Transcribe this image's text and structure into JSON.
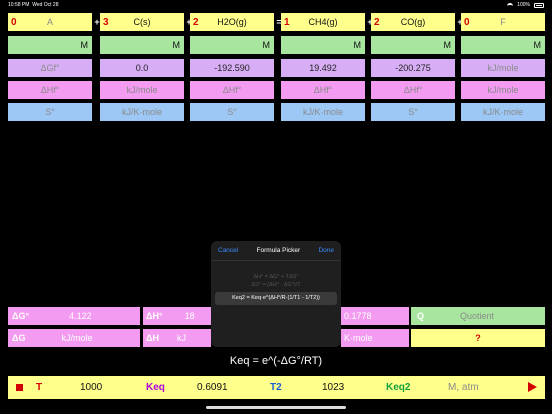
{
  "status": {
    "time": "10:58 PM",
    "date": "Wed Oct 28",
    "battery": "100%"
  },
  "species": [
    {
      "coef": "0",
      "name": "A",
      "name_gray": true,
      "op": "+"
    },
    {
      "coef": "3",
      "name": "C(s)",
      "name_gray": false,
      "op": "+"
    },
    {
      "coef": "2",
      "name": "H2O(g)",
      "name_gray": false,
      "op": "="
    },
    {
      "coef": "1",
      "name": "CH4(g)",
      "name_gray": false,
      "op": "+"
    },
    {
      "coef": "2",
      "name": "CO(g)",
      "name_gray": false,
      "op": "+"
    },
    {
      "coef": "0",
      "name": "F",
      "name_gray": true,
      "op": ""
    }
  ],
  "molarity_label": "M",
  "dGf": [
    "ΔGf°",
    "0.0",
    "-192.590",
    "19.492",
    "-200.275",
    "kJ/mole"
  ],
  "dHf": [
    "ΔHf°",
    "kJ/mole",
    "ΔHf°",
    "ΔHf°",
    "ΔHf°",
    "kJ/mole"
  ],
  "S": [
    "S°",
    "kJ/K·mole",
    "S°",
    "kJ/K·mole",
    "S°",
    "kJ/K·mole"
  ],
  "picker": {
    "cancel": "Cancel",
    "title": "Formula Picker",
    "done": "Done",
    "items": [
      "ΔH° = ΔG° + TΔS°",
      "ΔS° = (ΔH° - ΔG°)/T",
      "Keq2 = Keq·e^(ΔH°/R·(1/T1 - 1/T2))"
    ],
    "selected_index": 2
  },
  "results_row1": {
    "dG0_label": "ΔG°",
    "dG0_value": "4.122",
    "dH0_label": "ΔH°",
    "dH0_value": "18",
    "k_value": "0.1778",
    "q_label": "Q",
    "q_value": "Quotient"
  },
  "results_row2": {
    "dG_label": "ΔG",
    "dG_value": "kJ/mole",
    "dH_label": "ΔH",
    "dH_value": "kJ",
    "k_unit": "K·mole",
    "q_value": "?"
  },
  "formula": "Keq = e^(-ΔG°/RT)",
  "bottom": {
    "t_label": "T",
    "t_value": "1000",
    "keq_label": "Keq",
    "keq_value": "0.6091",
    "t2_label": "T2",
    "t2_value": "1023",
    "keq2_label": "Keq2",
    "keq2_value": "M, atm"
  },
  "colors": {
    "yellow": "#ffff8c",
    "green": "#a8e6a0",
    "purple": "#d7aef5",
    "pink": "#f29bf0",
    "blue": "#9dc8f5",
    "coef_red": "#d30000"
  }
}
